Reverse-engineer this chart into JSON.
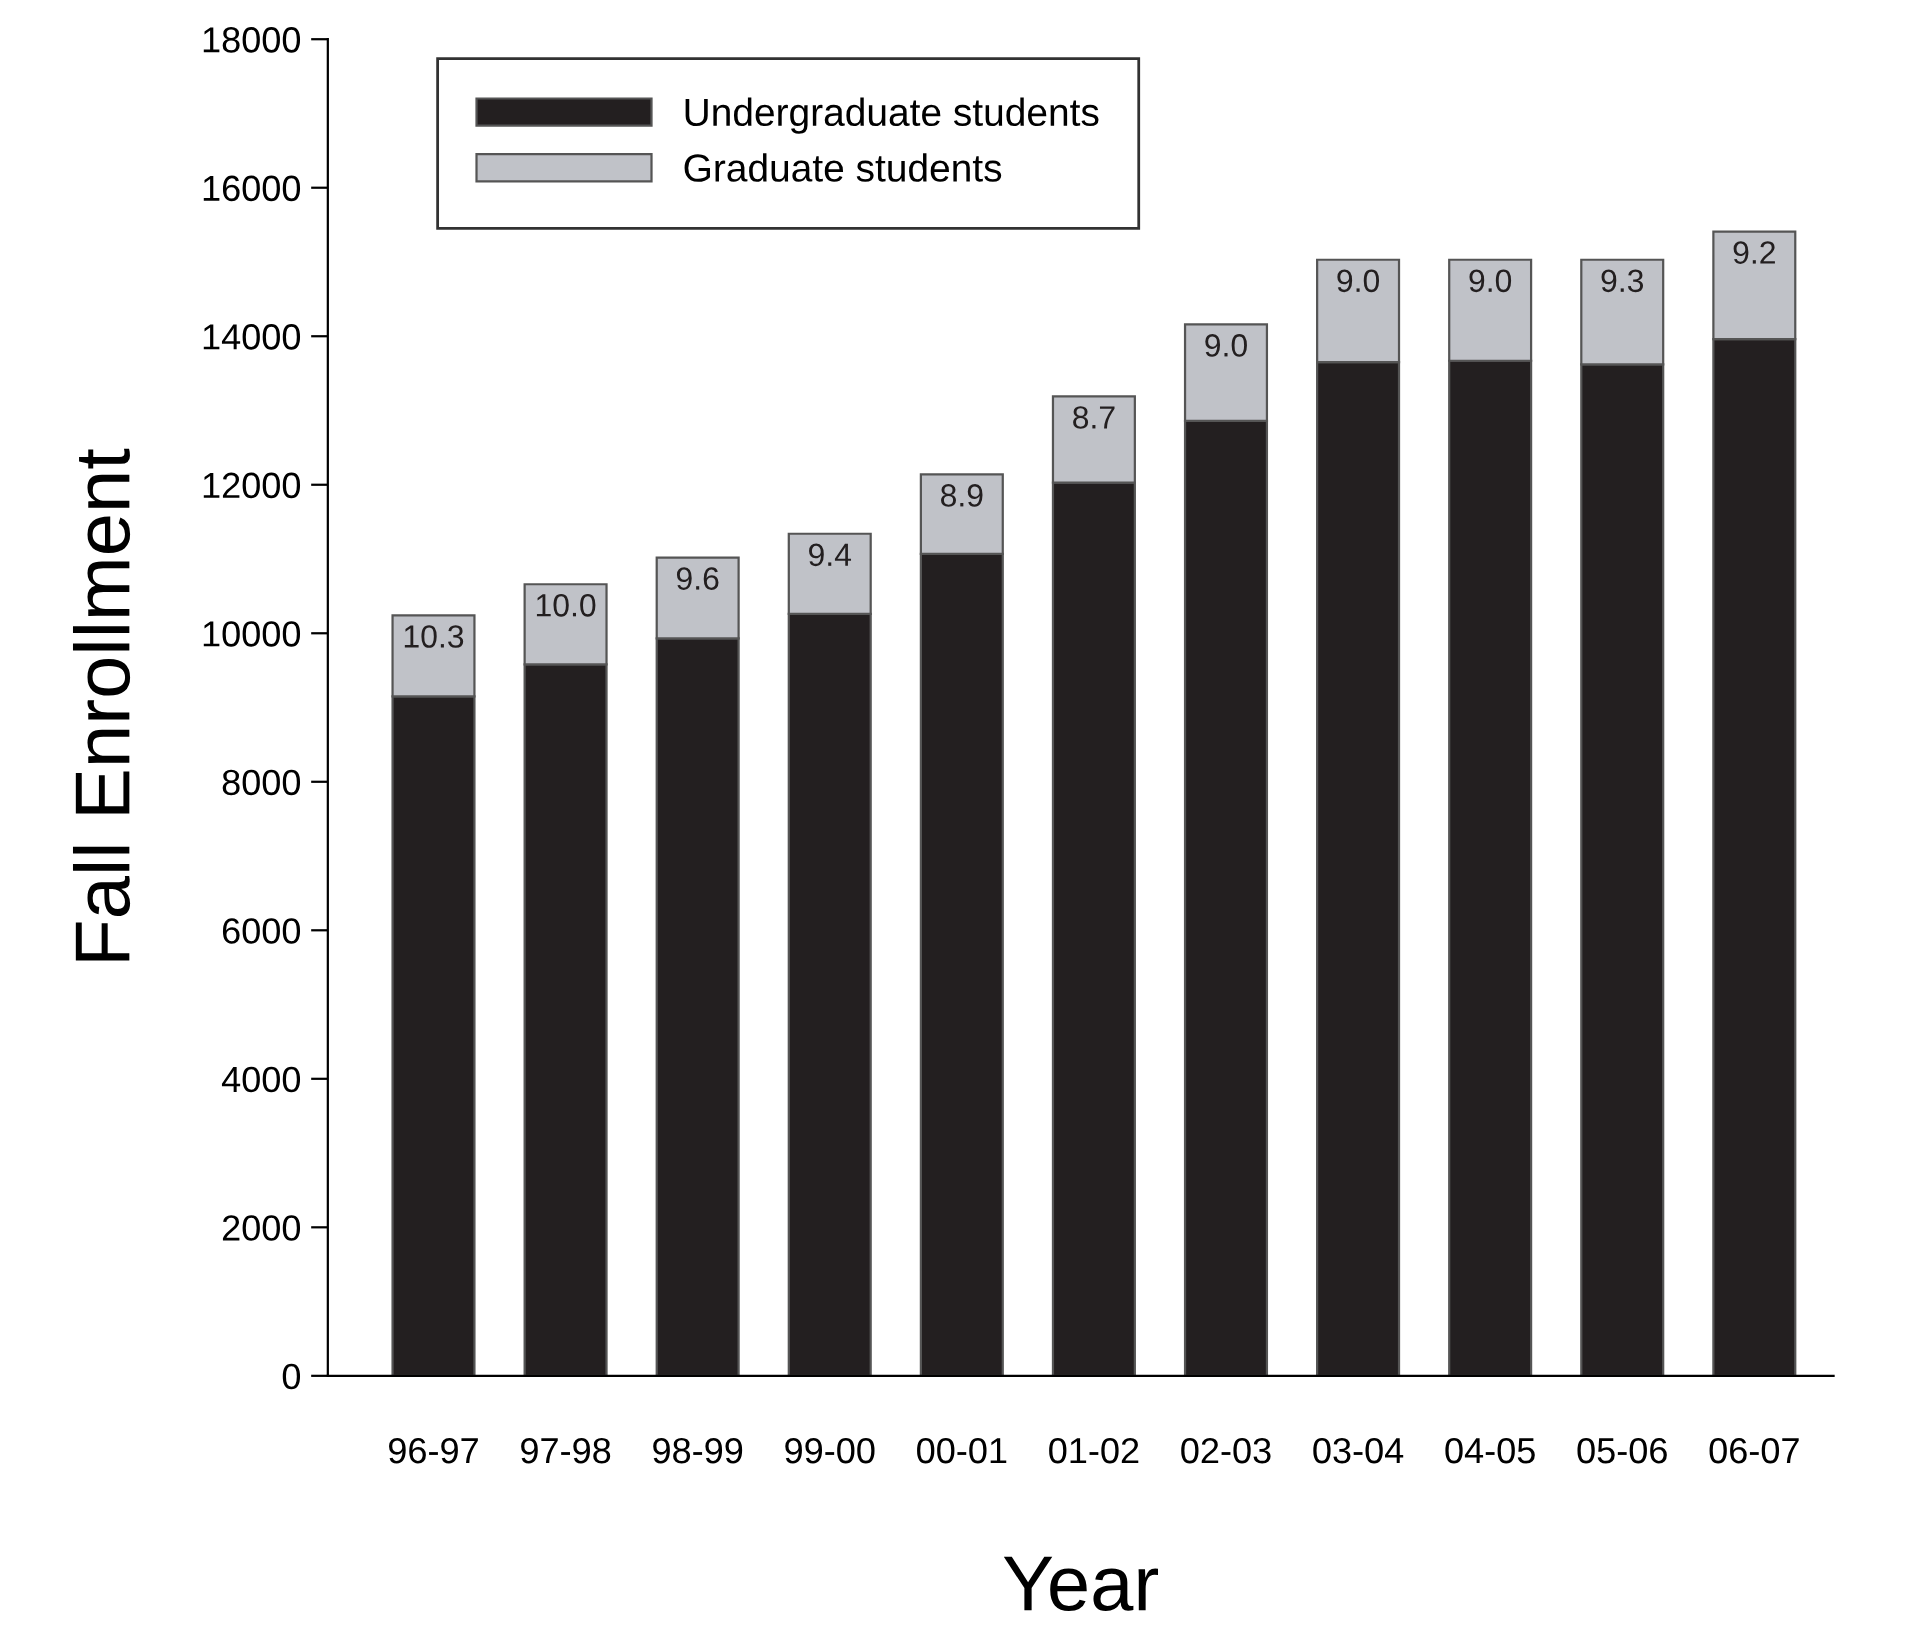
{
  "chart_data": {
    "type": "bar",
    "xlabel": "Year",
    "ylabel": "Fall Enrollment",
    "categories": [
      "96-97",
      "97-98",
      "98-99",
      "99-00",
      "00-01",
      "01-02",
      "02-03",
      "03-04",
      "04-05",
      "05-06",
      "06-07"
    ],
    "stacked": true,
    "series": [
      {
        "name": "Undergraduate students",
        "color": "#231f20",
        "values": [
          9150,
          9580,
          9930,
          10260,
          11070,
          12030,
          12860,
          13650,
          13670,
          13620,
          13960
        ]
      },
      {
        "name": "Graduate students",
        "color": "#c0c2c8",
        "values": [
          1090,
          1080,
          1090,
          1080,
          1070,
          1160,
          1300,
          1380,
          1360,
          1410,
          1450
        ]
      }
    ],
    "annotations": [
      {
        "text": "10.3",
        "x": "96-97",
        "y": 10240
      },
      {
        "text": "10.0",
        "x": "97-98",
        "y": 10660
      },
      {
        "text": "9.6",
        "x": "98-99",
        "y": 11020
      },
      {
        "text": "9.4",
        "x": "99-00",
        "y": 11340
      },
      {
        "text": "8.9",
        "x": "00-01",
        "y": 12140
      },
      {
        "text": "8.7",
        "x": "01-02",
        "y": 13190
      },
      {
        "text": "9.0",
        "x": "02-03",
        "y": 14160
      },
      {
        "text": "9.0",
        "x": "03-04",
        "y": 15030
      },
      {
        "text": "9.0",
        "x": "04-05",
        "y": 15030
      },
      {
        "text": "9.3",
        "x": "05-06",
        "y": 15030
      },
      {
        "text": "9.2",
        "x": "06-07",
        "y": 15410
      }
    ],
    "ylim": [
      0,
      18000
    ],
    "yticks": [
      0,
      2000,
      4000,
      6000,
      8000,
      10000,
      12000,
      14000,
      16000,
      18000
    ],
    "grid": false,
    "legend": "top left"
  }
}
